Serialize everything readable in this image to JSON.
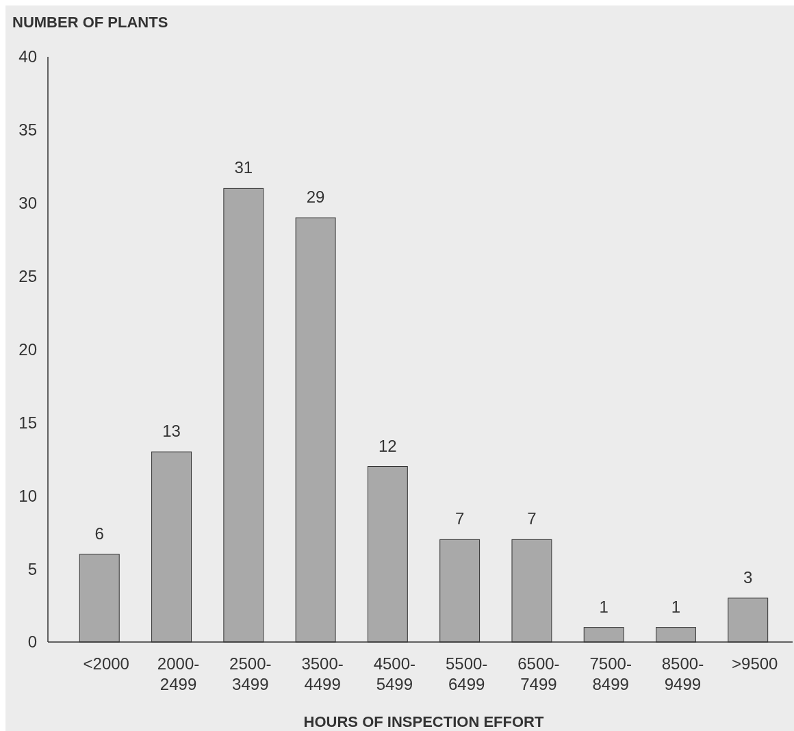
{
  "chart_data": {
    "type": "bar",
    "ylabel": "NUMBER OF PLANTS",
    "xlabel": "HOURS OF INSPECTION EFFORT",
    "categories": [
      "<2000",
      "2000-2499",
      "2500-3499",
      "3500-4499",
      "4500-5499",
      "5500-6499",
      "6500-7499",
      "7500-8499",
      "8500-9499",
      ">9500"
    ],
    "values": [
      6,
      13,
      31,
      29,
      12,
      7,
      7,
      1,
      1,
      3
    ],
    "color": "#a9a9a9",
    "ylim": [
      0,
      40
    ],
    "yticks": [
      0,
      5,
      10,
      15,
      20,
      25,
      30,
      35,
      40
    ],
    "data_labels": true
  }
}
